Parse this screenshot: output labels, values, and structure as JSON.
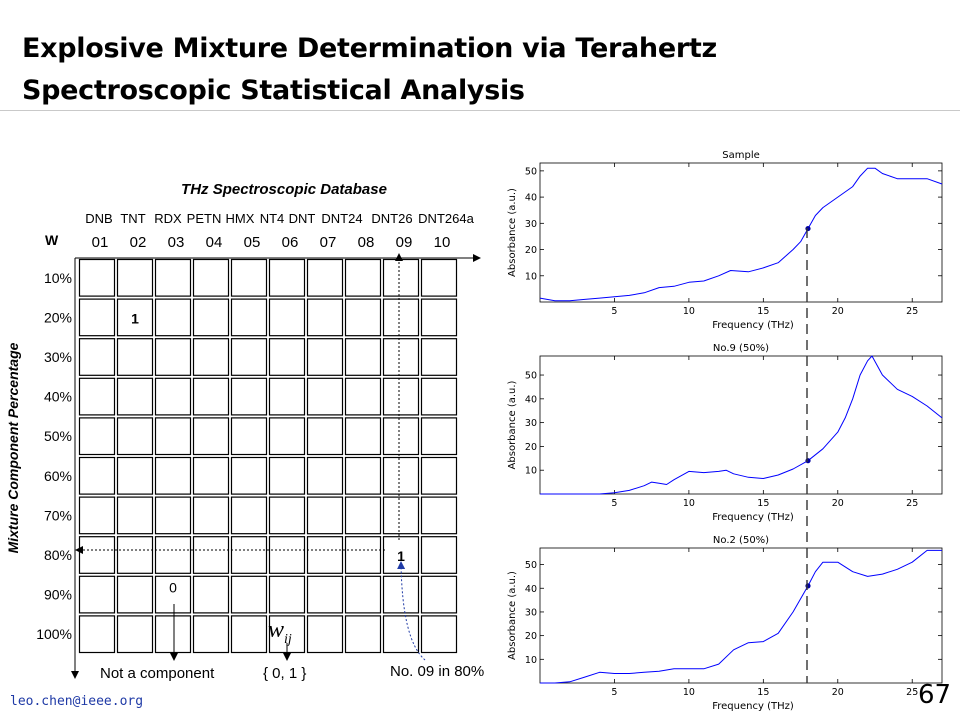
{
  "slide": {
    "title_line1": "Explosive Mixture Determination via Terahertz",
    "title_line2": "Spectroscopic Statistical Analysis",
    "footer": "leo.chen@ieee.org",
    "page_number": "67"
  },
  "matrix": {
    "title": "THz Spectroscopic Database",
    "w_label": "W",
    "y_axis_label": "Mixture Component Percentage",
    "columns": [
      {
        "name": "DNB",
        "index": "01"
      },
      {
        "name": "TNT",
        "index": "02"
      },
      {
        "name": "RDX",
        "index": "03"
      },
      {
        "name": "PETN",
        "index": "04"
      },
      {
        "name": "HMX",
        "index": "05"
      },
      {
        "name": "NT4",
        "index": "06"
      },
      {
        "name": "DNT",
        "index": "07"
      },
      {
        "name": "DNT24",
        "index": "08"
      },
      {
        "name": "DNT26",
        "index": "09"
      },
      {
        "name": "DNT264a",
        "index": "10"
      }
    ],
    "rows": [
      "10%",
      "20%",
      "30%",
      "40%",
      "50%",
      "60%",
      "70%",
      "80%",
      "90%",
      "100%"
    ],
    "cells": [
      {
        "row": 1,
        "col": 1,
        "value": "1"
      },
      {
        "row": 7,
        "col": 8,
        "value": "1"
      },
      {
        "row": 8,
        "col": 2,
        "value": "0"
      }
    ],
    "annotations": {
      "not_component": "Not a component",
      "wij_symbol": "w",
      "wij_subscript": "ij",
      "binary_set": "{ 0, 1 }",
      "highlight": "No. 09 in 80%"
    }
  },
  "chart_data": [
    {
      "type": "line",
      "title": "Sample",
      "xlabel": "Frequency (THz)",
      "ylabel": "Absorbance (a.u.)",
      "xlim": [
        0,
        27
      ],
      "ylim": [
        0,
        53
      ],
      "xticks": [
        5,
        10,
        15,
        20,
        25
      ],
      "yticks": [
        10,
        20,
        30,
        40,
        50
      ],
      "line_color": "#0000ff",
      "series": [
        {
          "x": [
            0,
            1,
            2,
            3,
            4,
            5,
            6,
            7,
            8,
            9,
            10,
            11,
            12,
            12.8,
            14,
            15,
            16,
            17,
            17.5,
            18,
            18.5,
            19,
            20,
            21,
            21.5,
            22,
            22.5,
            23,
            24,
            25,
            26,
            27
          ],
          "y": [
            1.5,
            0.5,
            0.5,
            1,
            1.5,
            2,
            2.5,
            3.5,
            5.5,
            6,
            7.5,
            8,
            10,
            12,
            11.5,
            13,
            15,
            20,
            23,
            28,
            33,
            36,
            40,
            44,
            48,
            51,
            51,
            49,
            47,
            47,
            47,
            45
          ]
        }
      ],
      "marker": {
        "x": 18,
        "y": 28,
        "color": "#0000a0"
      }
    },
    {
      "type": "line",
      "title": "No.9 (50%)",
      "xlabel": "Frequency (THz)",
      "ylabel": "Absorbance (a.u.)",
      "xlim": [
        0,
        27
      ],
      "ylim": [
        0,
        58
      ],
      "xticks": [
        5,
        10,
        15,
        20,
        25
      ],
      "yticks": [
        10,
        20,
        30,
        40,
        50
      ],
      "line_color": "#0000ff",
      "series": [
        {
          "x": [
            0,
            2,
            4,
            5,
            6,
            7,
            7.5,
            8,
            8.5,
            9,
            10,
            11,
            12,
            12.5,
            13,
            14,
            15,
            16,
            17,
            18,
            19,
            20,
            20.5,
            21,
            21.5,
            22,
            22.3,
            23,
            24,
            25,
            26,
            27
          ],
          "y": [
            0,
            0,
            0,
            0.5,
            1.5,
            3.5,
            5,
            4.5,
            4,
            6,
            9.5,
            9,
            9.5,
            10,
            8.5,
            7,
            6.5,
            8,
            10.5,
            14,
            19,
            26,
            32,
            40,
            50,
            56,
            58,
            50,
            44,
            41,
            37,
            32
          ]
        }
      ],
      "marker": {
        "x": 18,
        "y": 14,
        "color": "#0000a0"
      }
    },
    {
      "type": "line",
      "title": "No.2 (50%)",
      "xlabel": "Frequency (THz)",
      "ylabel": "Absorbance (a.u.)",
      "xlim": [
        0,
        27
      ],
      "ylim": [
        0,
        57
      ],
      "xticks": [
        5,
        10,
        15,
        20,
        25
      ],
      "yticks": [
        10,
        20,
        30,
        40,
        50
      ],
      "line_color": "#0000ff",
      "series": [
        {
          "x": [
            0,
            1,
            2,
            3,
            4,
            5,
            6,
            7,
            8,
            9,
            10,
            11,
            12,
            13,
            14,
            15,
            16,
            17,
            18,
            18.5,
            19,
            20,
            21,
            22,
            23,
            24,
            25,
            26,
            27
          ],
          "y": [
            0,
            0,
            0.5,
            2.5,
            4.5,
            4,
            4,
            4.5,
            5,
            6,
            6,
            6,
            8,
            14,
            17,
            17.5,
            21,
            30,
            41,
            47,
            51,
            51,
            47,
            45,
            46,
            48,
            51,
            56,
            56
          ]
        }
      ],
      "marker": {
        "x": 18,
        "y": 41,
        "color": "#0000a0"
      }
    }
  ]
}
